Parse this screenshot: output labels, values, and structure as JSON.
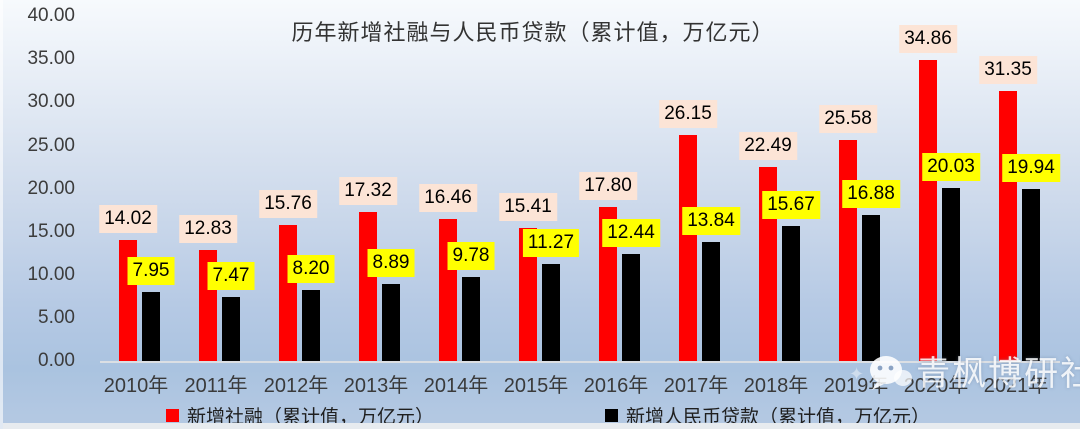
{
  "title": "历年新增社融与人民币贷款（累计值，万亿元）",
  "y_axis": {
    "tick_labels": [
      "0.00",
      "5.00",
      "10.00",
      "15.00",
      "20.00",
      "25.00",
      "30.00",
      "35.00",
      "40.00"
    ]
  },
  "chart_data": {
    "type": "bar",
    "title": "历年新增社融与人民币贷款（累计值，万亿元）",
    "categories": [
      "2010年",
      "2011年",
      "2012年",
      "2013年",
      "2014年",
      "2015年",
      "2016年",
      "2017年",
      "2018年",
      "2019年",
      "2020年",
      "2021年"
    ],
    "series": [
      {
        "name": "新增社融（累计值，万亿元）",
        "color": "#ff0000",
        "label_bg": "#fce4d6",
        "values": [
          14.02,
          12.83,
          15.76,
          17.32,
          16.46,
          15.41,
          17.8,
          26.15,
          22.49,
          25.58,
          34.86,
          31.35
        ],
        "labels": [
          "14.02",
          "12.83",
          "15.76",
          "17.32",
          "16.46",
          "15.41",
          "17.80",
          "26.15",
          "22.49",
          "25.58",
          "34.86",
          "31.35"
        ]
      },
      {
        "name": "新增人民币贷款（累计值，万亿元）",
        "color": "#000000",
        "label_bg": "#ffff00",
        "values": [
          7.95,
          7.47,
          8.2,
          8.89,
          9.78,
          11.27,
          12.44,
          13.84,
          15.67,
          16.88,
          20.03,
          19.94
        ],
        "labels": [
          "7.95",
          "7.47",
          "8.20",
          "8.89",
          "9.78",
          "11.27",
          "12.44",
          "13.84",
          "15.67",
          "16.88",
          "20.03",
          "19.94"
        ]
      }
    ],
    "ylim": [
      0,
      40
    ],
    "ytick_step": 5,
    "grid": false,
    "legend_position": "bottom"
  },
  "watermark": {
    "text": "青枫博研社",
    "icon": "wechat-icon"
  },
  "colors": {
    "bar_red": "#ff0000",
    "bar_black": "#000000",
    "red_label_bg": "#fce4d6",
    "black_label_bg": "#ffff00",
    "background_top": "#f7fafd",
    "background_bottom": "#aac3e0",
    "baseline": "#dbdfe4"
  }
}
